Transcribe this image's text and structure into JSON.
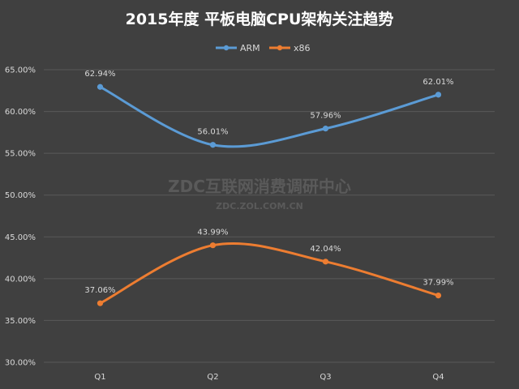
{
  "chart_data": {
    "type": "line",
    "title": "2015年度 平板电脑CPU架构关注趋势",
    "categories": [
      "Q1",
      "Q2",
      "Q3",
      "Q4"
    ],
    "series": [
      {
        "name": "ARM",
        "color": "#5b9bd5",
        "values": [
          62.94,
          56.01,
          57.96,
          62.01
        ],
        "labels": [
          "62.94%",
          "56.01%",
          "57.96%",
          "62.01%"
        ]
      },
      {
        "name": "x86",
        "color": "#ed7d31",
        "values": [
          37.06,
          43.99,
          42.04,
          37.99
        ],
        "labels": [
          "37.06%",
          "43.99%",
          "42.04%",
          "37.99%"
        ]
      }
    ],
    "ylim": [
      30,
      65
    ],
    "yticks": [
      30,
      35,
      40,
      45,
      50,
      55,
      60,
      65
    ],
    "ytick_labels": [
      "30.00%",
      "35.00%",
      "40.00%",
      "45.00%",
      "50.00%",
      "55.00%",
      "60.00%",
      "65.00%"
    ],
    "xlabel": "",
    "ylabel": "",
    "grid": true,
    "smooth": true,
    "legend": "top-center"
  },
  "watermark": {
    "line1": "ZDC互联网消费调研中心",
    "line2": "ZDC.ZOL.COM.CN"
  }
}
